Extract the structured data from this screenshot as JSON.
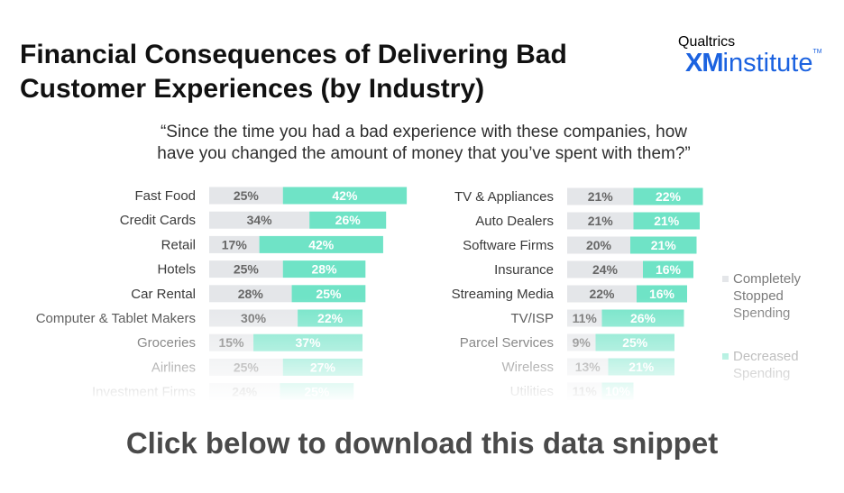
{
  "title_lines": [
    "Financial Consequences of Delivering Bad",
    "Customer Experiences (by Industry)"
  ],
  "logo": {
    "brand": "Qualtrics",
    "xm": "XM",
    "institute": "institute",
    "tm": "TM"
  },
  "question_lines": [
    "“Since the time you had a bad experience with these companies, how",
    "have you changed the amount of money that you’ve spent with them?”"
  ],
  "cta": "Click below to download this data snippet",
  "colors": {
    "stopped": "#e4e6e9",
    "decreased": "#6fe3c6",
    "label": "#3a3a3a"
  },
  "chart_data": [
    {
      "type": "bar",
      "orientation": "horizontal",
      "stacked": true,
      "categories": [
        "Fast Food",
        "Credit Cards",
        "Retail",
        "Hotels",
        "Car Rental",
        "Computer & Tablet Makers",
        "Groceries",
        "Airlines",
        "Investment Firms"
      ],
      "series": [
        {
          "name": "Completely Stopped Spending",
          "values": [
            25,
            34,
            17,
            25,
            28,
            30,
            15,
            25,
            24
          ]
        },
        {
          "name": "Decreased Spending",
          "values": [
            42,
            26,
            42,
            28,
            25,
            22,
            37,
            27,
            25
          ]
        }
      ],
      "value_suffix": "%"
    },
    {
      "type": "bar",
      "orientation": "horizontal",
      "stacked": true,
      "categories": [
        "TV & Appliances",
        "Auto Dealers",
        "Software Firms",
        "Insurance",
        "Streaming Media",
        "TV/ISP",
        "Parcel Services",
        "Wireless",
        "Utilities"
      ],
      "series": [
        {
          "name": "Completely Stopped Spending",
          "values": [
            21,
            21,
            20,
            24,
            22,
            11,
            9,
            13,
            11
          ]
        },
        {
          "name": "Decreased Spending",
          "values": [
            22,
            21,
            21,
            16,
            16,
            26,
            25,
            21,
            10
          ]
        }
      ],
      "value_suffix": "%"
    }
  ],
  "legend": [
    {
      "key": "stopped",
      "lines": [
        "Completely",
        "Stopped",
        "Spending"
      ]
    },
    {
      "key": "decreased",
      "lines": [
        "Decreased",
        "Spending"
      ]
    }
  ]
}
